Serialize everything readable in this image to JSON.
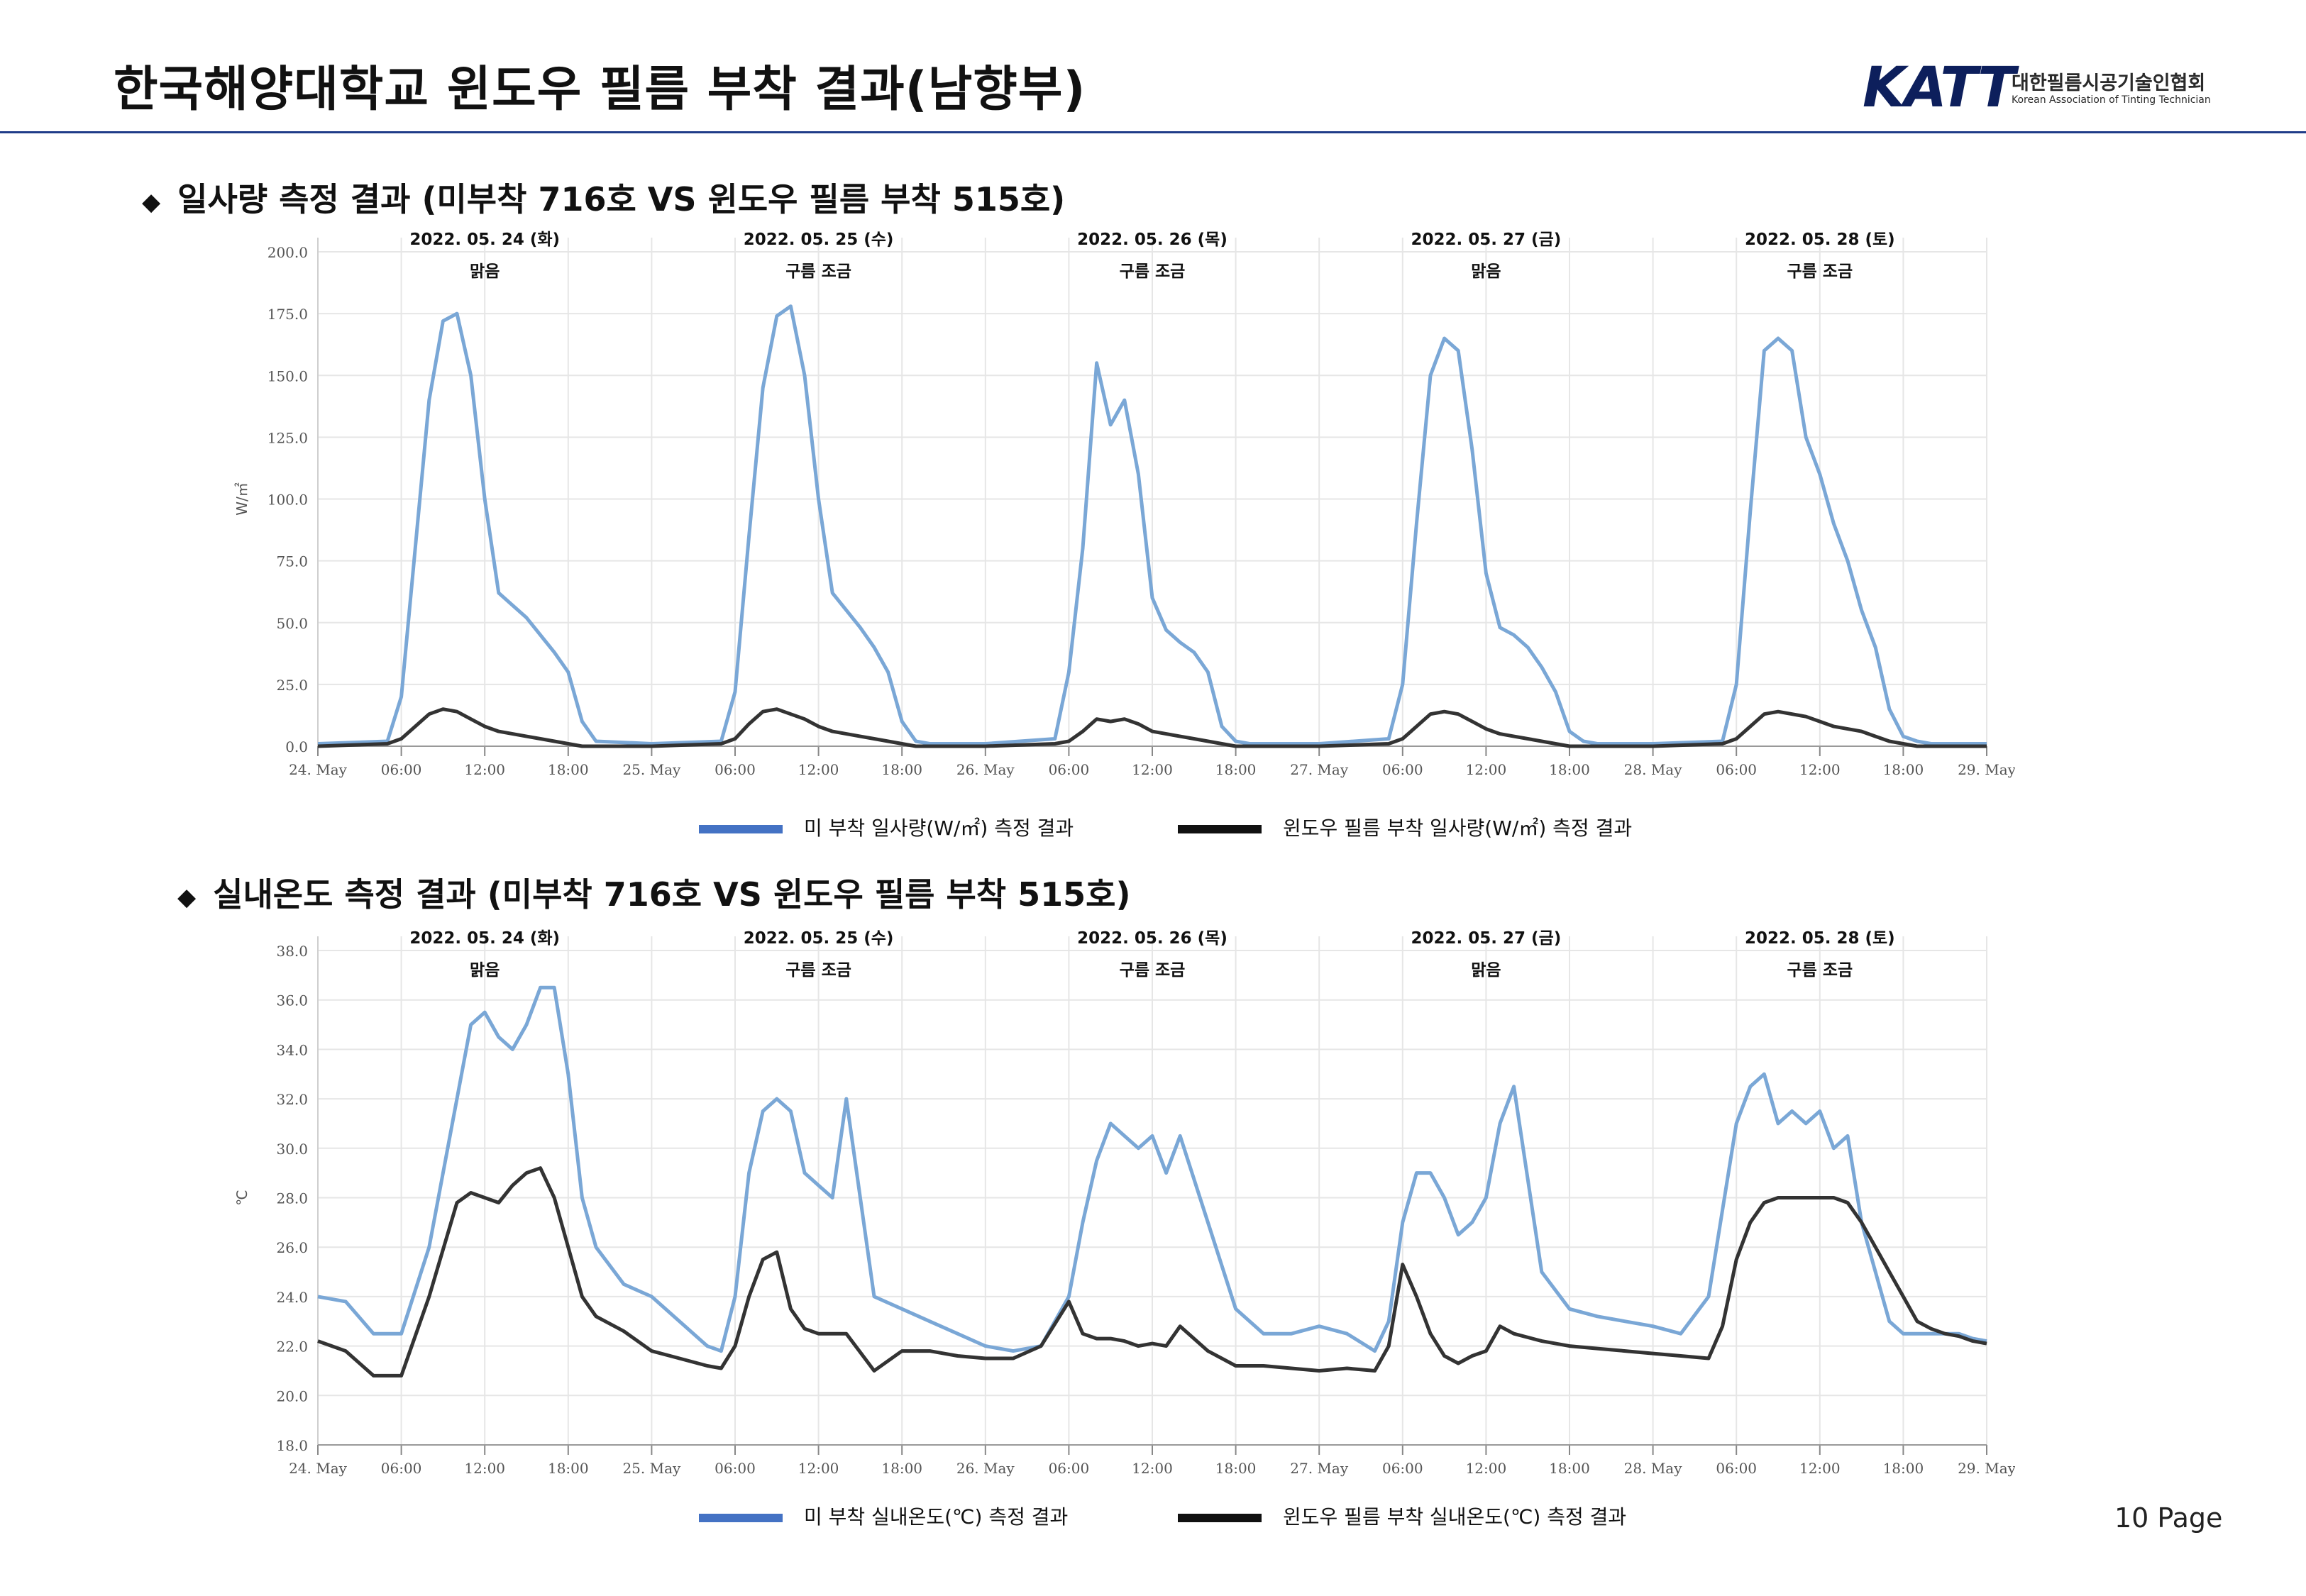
{
  "header": {
    "title": "한국해양대학교 윈도우 필름 부착 결과(남향부)",
    "logo_mark": "KATT",
    "logo_name": "대한필름시공기술인협회",
    "logo_sub": "Korean Association of Tinting Technician"
  },
  "sections": [
    {
      "bullet": "◆",
      "title": "일사량 측정 결과 (미부착 716호 VS 윈도우 필름 부착 515호)"
    },
    {
      "bullet": "◆",
      "title": "실내온도 측정 결과 (미부착 716호 VS 윈도우 필름 부착 515호)"
    }
  ],
  "colors": {
    "unfilmed": "#7aa7d6",
    "filmed": "#333333",
    "legend_unfilmed": "#4472c4",
    "legend_filmed": "#111111",
    "grid": "#e6e6e6"
  },
  "page_number": "10 Page",
  "chart_data": [
    {
      "type": "line",
      "ylabel": "W/㎡",
      "ylim": [
        0,
        200
      ],
      "yticks": [
        "0.0",
        "25.0",
        "50.0",
        "75.0",
        "100.0",
        "125.0",
        "150.0",
        "175.0",
        "200.0"
      ],
      "xlim": [
        0,
        120
      ],
      "xtick_labels": [
        "24. May",
        "06:00",
        "12:00",
        "18:00",
        "25. May",
        "06:00",
        "12:00",
        "18:00",
        "26. May",
        "06:00",
        "12:00",
        "18:00",
        "27. May",
        "06:00",
        "12:00",
        "18:00",
        "28. May",
        "06:00",
        "12:00",
        "18:00",
        "29. May"
      ],
      "day_annotations": [
        {
          "date": "2022. 05. 24 (화)",
          "weather": "맑음"
        },
        {
          "date": "2022. 05. 25 (수)",
          "weather": "구름 조금"
        },
        {
          "date": "2022. 05. 26 (목)",
          "weather": "구름 조금"
        },
        {
          "date": "2022. 05. 27 (금)",
          "weather": "맑음"
        },
        {
          "date": "2022. 05. 28 (토)",
          "weather": "구름 조금"
        }
      ],
      "series": [
        {
          "name": "미 부착 일사량(W/㎡) 측정 결과",
          "x": [
            0,
            5,
            6,
            7,
            8,
            9,
            10,
            11,
            12,
            13,
            14,
            15,
            16,
            17,
            18,
            19,
            20,
            24,
            29,
            30,
            31,
            32,
            33,
            34,
            35,
            36,
            37,
            38,
            39,
            40,
            41,
            42,
            43,
            44,
            48,
            53,
            54,
            55,
            56,
            57,
            58,
            59,
            60,
            61,
            62,
            63,
            64,
            65,
            66,
            67,
            68,
            72,
            77,
            78,
            79,
            80,
            81,
            82,
            83,
            84,
            85,
            86,
            87,
            88,
            89,
            90,
            91,
            92,
            96,
            101,
            102,
            103,
            104,
            105,
            106,
            107,
            108,
            109,
            110,
            111,
            112,
            113,
            114,
            115,
            116,
            120
          ],
          "y": [
            1,
            2,
            20,
            80,
            140,
            172,
            175,
            150,
            100,
            62,
            57,
            52,
            45,
            38,
            30,
            10,
            2,
            1,
            2,
            22,
            85,
            145,
            174,
            178,
            150,
            100,
            62,
            55,
            48,
            40,
            30,
            10,
            2,
            1,
            1,
            3,
            30,
            80,
            155,
            130,
            140,
            110,
            60,
            47,
            42,
            38,
            30,
            8,
            2,
            1,
            1,
            1,
            3,
            25,
            90,
            150,
            165,
            160,
            120,
            70,
            48,
            45,
            40,
            32,
            22,
            6,
            2,
            1,
            1,
            2,
            25,
            95,
            160,
            165,
            160,
            125,
            110,
            90,
            75,
            55,
            40,
            15,
            4,
            2,
            1,
            1
          ]
        },
        {
          "name": "윈도우 필름 부착 일사량(W/㎡) 측정 결과",
          "x": [
            0,
            5,
            6,
            7,
            8,
            9,
            10,
            11,
            12,
            13,
            14,
            15,
            16,
            17,
            18,
            19,
            20,
            24,
            29,
            30,
            31,
            32,
            33,
            34,
            35,
            36,
            37,
            38,
            39,
            40,
            41,
            42,
            43,
            44,
            48,
            53,
            54,
            55,
            56,
            57,
            58,
            59,
            60,
            61,
            62,
            63,
            64,
            65,
            66,
            67,
            68,
            72,
            77,
            78,
            79,
            80,
            81,
            82,
            83,
            84,
            85,
            86,
            87,
            88,
            89,
            90,
            91,
            92,
            96,
            101,
            102,
            103,
            104,
            105,
            106,
            107,
            108,
            109,
            110,
            111,
            112,
            113,
            114,
            115,
            116,
            120
          ],
          "y": [
            0,
            1,
            3,
            8,
            13,
            15,
            14,
            11,
            8,
            6,
            5,
            4,
            3,
            2,
            1,
            0,
            0,
            0,
            1,
            3,
            9,
            14,
            15,
            13,
            11,
            8,
            6,
            5,
            4,
            3,
            2,
            1,
            0,
            0,
            0,
            1,
            2,
            6,
            11,
            10,
            11,
            9,
            6,
            5,
            4,
            3,
            2,
            1,
            0,
            0,
            0,
            0,
            1,
            3,
            8,
            13,
            14,
            13,
            10,
            7,
            5,
            4,
            3,
            2,
            1,
            0,
            0,
            0,
            0,
            1,
            3,
            8,
            13,
            14,
            13,
            12,
            10,
            8,
            7,
            6,
            4,
            2,
            1,
            0,
            0,
            0
          ]
        }
      ],
      "legend": [
        "미 부착 일사량(W/㎡) 측정 결과",
        "윈도우 필름 부착 일사량(W/㎡) 측정 결과"
      ],
      "legend_position": "bottom"
    },
    {
      "type": "line",
      "ylabel": "℃",
      "ylim": [
        18,
        38
      ],
      "yticks": [
        "18.0",
        "20.0",
        "22.0",
        "24.0",
        "26.0",
        "28.0",
        "30.0",
        "32.0",
        "34.0",
        "36.0",
        "38.0"
      ],
      "xlim": [
        0,
        120
      ],
      "xtick_labels": [
        "24. May",
        "06:00",
        "12:00",
        "18:00",
        "25. May",
        "06:00",
        "12:00",
        "18:00",
        "26. May",
        "06:00",
        "12:00",
        "18:00",
        "27. May",
        "06:00",
        "12:00",
        "18:00",
        "28. May",
        "06:00",
        "12:00",
        "18:00",
        "29. May"
      ],
      "day_annotations": [
        {
          "date": "2022. 05. 24 (화)",
          "weather": "맑음"
        },
        {
          "date": "2022. 05. 25 (수)",
          "weather": "구름 조금"
        },
        {
          "date": "2022. 05. 26 (목)",
          "weather": "구름 조금"
        },
        {
          "date": "2022. 05. 27 (금)",
          "weather": "맑음"
        },
        {
          "date": "2022. 05. 28 (토)",
          "weather": "구름 조금"
        }
      ],
      "series": [
        {
          "name": "미 부착 실내온도(℃) 측정 결과",
          "x": [
            0,
            2,
            4,
            6,
            8,
            10,
            11,
            12,
            13,
            14,
            15,
            16,
            17,
            18,
            19,
            20,
            22,
            24,
            26,
            28,
            29,
            30,
            31,
            32,
            33,
            34,
            35,
            36,
            37,
            38,
            40,
            42,
            44,
            46,
            48,
            50,
            52,
            54,
            55,
            56,
            57,
            58,
            59,
            60,
            61,
            62,
            64,
            66,
            68,
            70,
            72,
            74,
            76,
            77,
            78,
            79,
            80,
            81,
            82,
            83,
            84,
            85,
            86,
            88,
            90,
            92,
            94,
            96,
            98,
            100,
            101,
            102,
            103,
            104,
            105,
            106,
            107,
            108,
            109,
            110,
            111,
            112,
            113,
            114,
            115,
            116,
            117,
            118,
            119,
            120
          ],
          "y": [
            24,
            23.8,
            22.5,
            22.5,
            26,
            32,
            35,
            35.5,
            34.5,
            34,
            35,
            36.5,
            36.5,
            33,
            28,
            26,
            24.5,
            24,
            23,
            22,
            21.8,
            24,
            29,
            31.5,
            32,
            31.5,
            29,
            28.5,
            28,
            32,
            24,
            23.5,
            23,
            22.5,
            22,
            21.8,
            22,
            24,
            27,
            29.5,
            31,
            30.5,
            30,
            30.5,
            29,
            30.5,
            27,
            23.5,
            22.5,
            22.5,
            22.8,
            22.5,
            21.8,
            23,
            27,
            29,
            29,
            28,
            26.5,
            27,
            28,
            31,
            32.5,
            25,
            23.5,
            23.2,
            23,
            22.8,
            22.5,
            24,
            27.5,
            31,
            32.5,
            33,
            31,
            31.5,
            31,
            31.5,
            30,
            30.5,
            27,
            25,
            23,
            22.5,
            22.5,
            22.5,
            22.5,
            22.5,
            22.3,
            22.2
          ]
        },
        {
          "name": "윈도우 필름 부착 실내온도(℃) 측정 결과",
          "x": [
            0,
            2,
            4,
            6,
            8,
            10,
            11,
            12,
            13,
            14,
            15,
            16,
            17,
            18,
            19,
            20,
            22,
            24,
            26,
            28,
            29,
            30,
            31,
            32,
            33,
            34,
            35,
            36,
            37,
            38,
            40,
            42,
            44,
            46,
            48,
            50,
            52,
            54,
            55,
            56,
            57,
            58,
            59,
            60,
            61,
            62,
            64,
            66,
            68,
            70,
            72,
            74,
            76,
            77,
            78,
            79,
            80,
            81,
            82,
            83,
            84,
            85,
            86,
            88,
            90,
            92,
            94,
            96,
            98,
            100,
            101,
            102,
            103,
            104,
            105,
            106,
            107,
            108,
            109,
            110,
            111,
            112,
            113,
            114,
            115,
            116,
            117,
            118,
            119,
            120
          ],
          "y": [
            22.2,
            21.8,
            20.8,
            20.8,
            24,
            27.8,
            28.2,
            28,
            27.8,
            28.5,
            29,
            29.2,
            28,
            26,
            24,
            23.2,
            22.6,
            21.8,
            21.5,
            21.2,
            21.1,
            22,
            24,
            25.5,
            25.8,
            23.5,
            22.7,
            22.5,
            22.5,
            22.5,
            21,
            21.8,
            21.8,
            21.6,
            21.5,
            21.5,
            22,
            23.8,
            22.5,
            22.3,
            22.3,
            22.2,
            22,
            22.1,
            22,
            22.8,
            21.8,
            21.2,
            21.2,
            21.1,
            21,
            21.1,
            21,
            22,
            25.3,
            24,
            22.5,
            21.6,
            21.3,
            21.6,
            21.8,
            22.8,
            22.5,
            22.2,
            22,
            21.9,
            21.8,
            21.7,
            21.6,
            21.5,
            22.8,
            25.5,
            27,
            27.8,
            28,
            28,
            28,
            28,
            28,
            27.8,
            27,
            26,
            25,
            24,
            23,
            22.7,
            22.5,
            22.4,
            22.2,
            22.1
          ]
        }
      ],
      "legend": [
        "미 부착 실내온도(℃) 측정 결과",
        "윈도우 필름 부착 실내온도(℃) 측정 결과"
      ],
      "legend_position": "bottom"
    }
  ]
}
